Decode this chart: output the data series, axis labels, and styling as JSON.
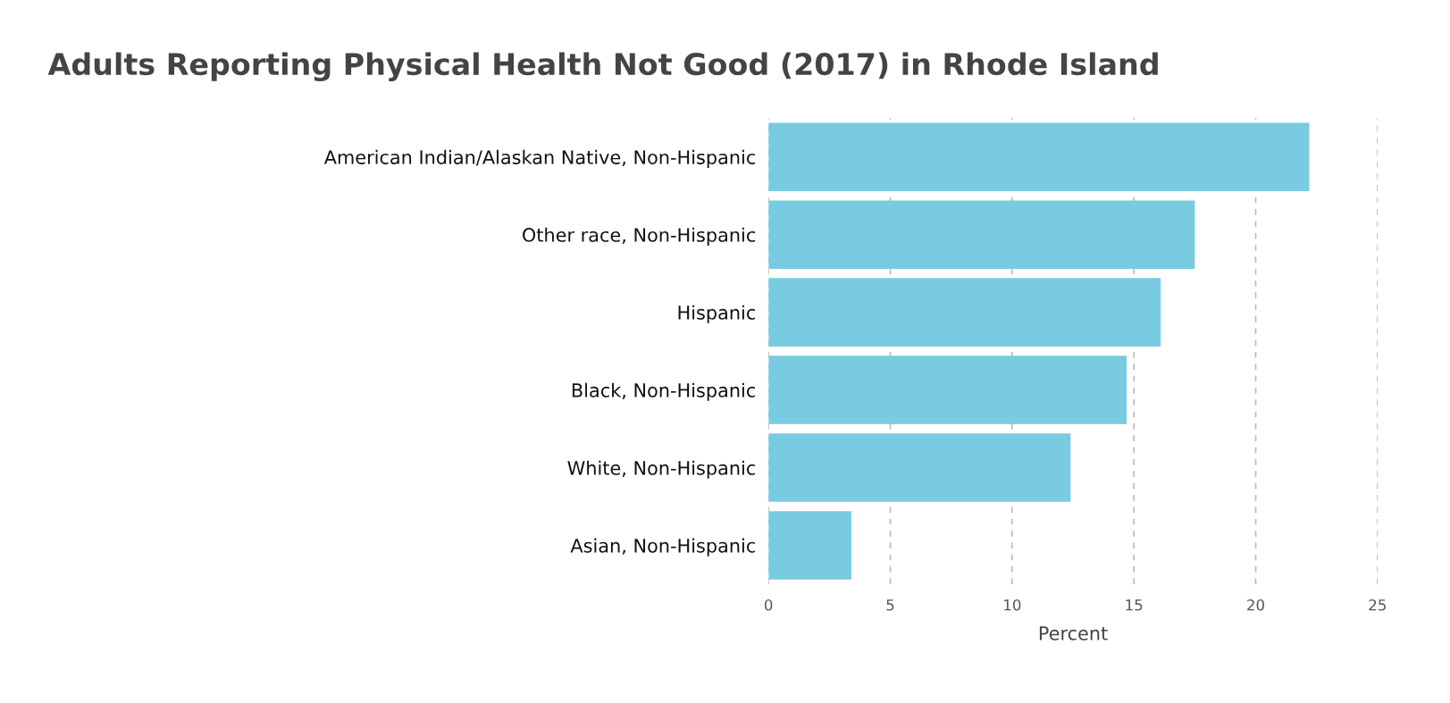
{
  "chart_data": {
    "type": "bar",
    "orientation": "horizontal",
    "title": "Adults Reporting Physical Health Not Good (2017) in Rhode Island",
    "xlabel": "Percent",
    "categories": [
      "American Indian/Alaskan Native, Non-Hispanic",
      "Other race, Non-Hispanic",
      "Hispanic",
      "Black, Non-Hispanic",
      "White, Non-Hispanic",
      "Asian, Non-Hispanic"
    ],
    "values": [
      22.2,
      17.5,
      16.1,
      14.7,
      12.4,
      3.4
    ],
    "color": "#78cbe0",
    "xlim": [
      0,
      25
    ],
    "xticks": [
      0,
      5,
      10,
      15,
      20,
      25
    ],
    "grid": "x",
    "legend": false
  }
}
